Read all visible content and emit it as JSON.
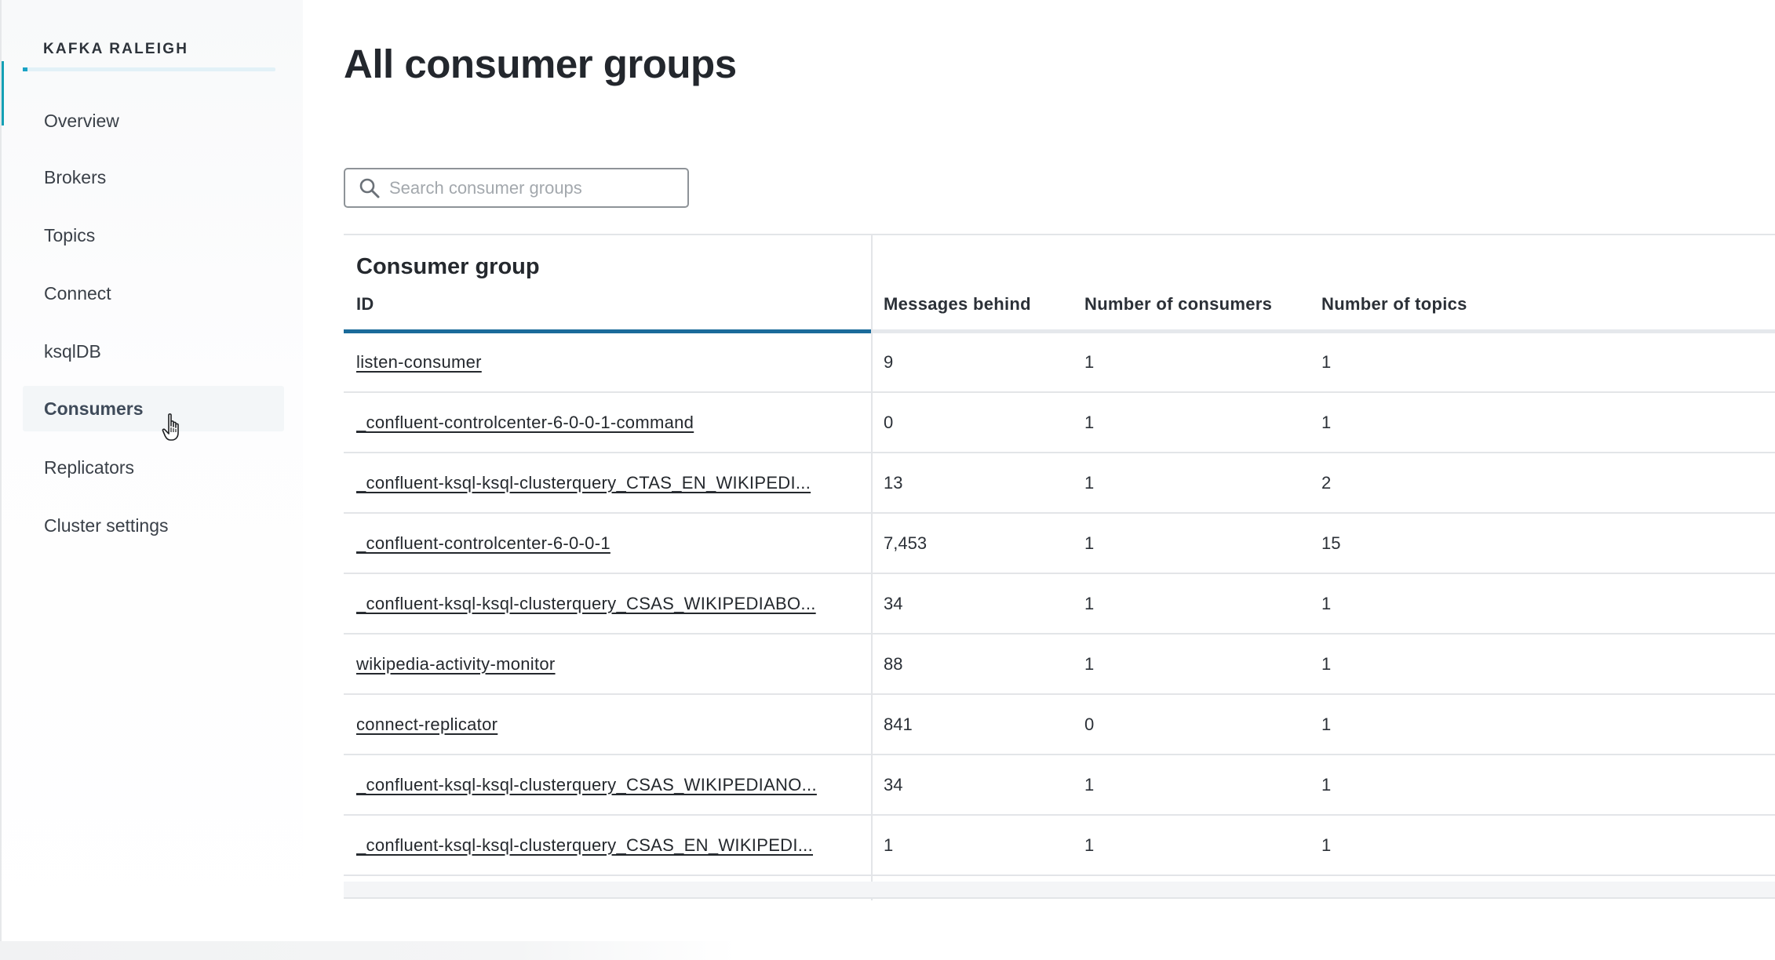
{
  "sidebar": {
    "cluster_name": "KAFKA RALEIGH",
    "items": [
      {
        "label": "Overview"
      },
      {
        "label": "Brokers"
      },
      {
        "label": "Topics"
      },
      {
        "label": "Connect"
      },
      {
        "label": "ksqlDB"
      },
      {
        "label": "Consumers",
        "active": true
      },
      {
        "label": "Replicators"
      },
      {
        "label": "Cluster settings"
      }
    ]
  },
  "page": {
    "title": "All consumer groups"
  },
  "search": {
    "placeholder": "Search consumer groups",
    "value": "",
    "icon": "search-icon"
  },
  "table": {
    "group_header": "Consumer group",
    "columns": [
      "ID",
      "Messages behind",
      "Number of consumers",
      "Number of topics"
    ],
    "rows": [
      {
        "id": "listen-consumer",
        "messages_behind": "9",
        "consumers": "1",
        "topics": "1"
      },
      {
        "id": "_confluent-controlcenter-6-0-0-1-command",
        "messages_behind": "0",
        "consumers": "1",
        "topics": "1"
      },
      {
        "id": "_confluent-ksql-ksql-clusterquery_CTAS_EN_WIKIPEDI...",
        "messages_behind": "13",
        "consumers": "1",
        "topics": "2"
      },
      {
        "id": "_confluent-controlcenter-6-0-0-1",
        "messages_behind": "7,453",
        "consumers": "1",
        "topics": "15"
      },
      {
        "id": "_confluent-ksql-ksql-clusterquery_CSAS_WIKIPEDIABO...",
        "messages_behind": "34",
        "consumers": "1",
        "topics": "1"
      },
      {
        "id": "wikipedia-activity-monitor",
        "messages_behind": "88",
        "consumers": "1",
        "topics": "1"
      },
      {
        "id": "connect-replicator",
        "messages_behind": "841",
        "consumers": "0",
        "topics": "1"
      },
      {
        "id": "_confluent-ksql-ksql-clusterquery_CSAS_WIKIPEDIANO...",
        "messages_behind": "34",
        "consumers": "1",
        "topics": "1"
      },
      {
        "id": "_confluent-ksql-ksql-clusterquery_CSAS_EN_WIKIPEDI...",
        "messages_behind": "1",
        "consumers": "1",
        "topics": "1"
      }
    ]
  },
  "colors": {
    "accent": "#14a0b5",
    "header_underline": "#1b6b9a",
    "active_nav_bg": "#f3f6f8"
  }
}
